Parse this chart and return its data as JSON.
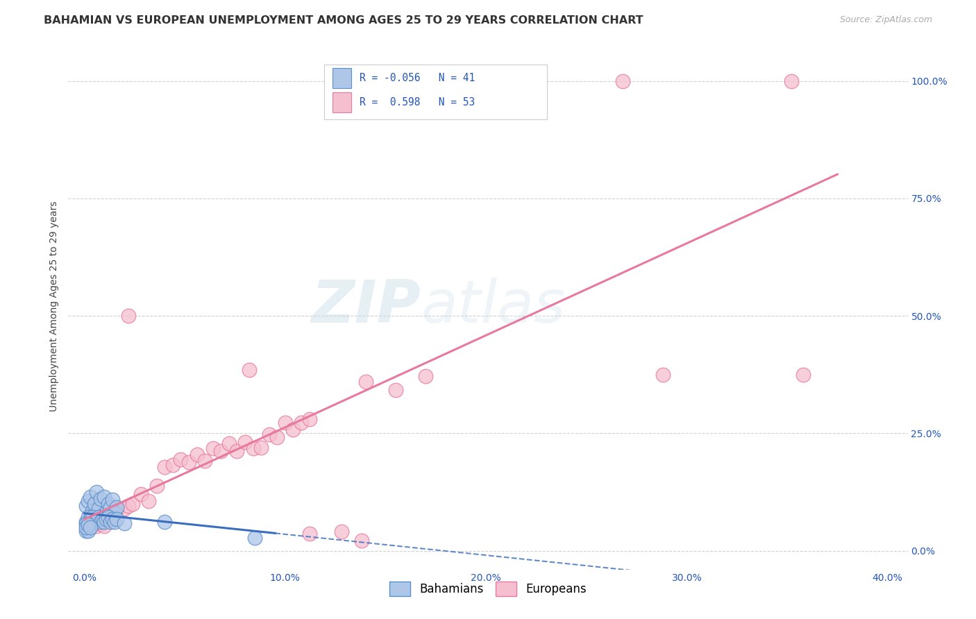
{
  "title": "BAHAMIAN VS EUROPEAN UNEMPLOYMENT AMONG AGES 25 TO 29 YEARS CORRELATION CHART",
  "source": "Source: ZipAtlas.com",
  "ylabel": "Unemployment Among Ages 25 to 29 years",
  "watermark_line1": "ZIP",
  "watermark_line2": "atlas",
  "legend_bahamian_R": "-0.056",
  "legend_bahamian_N": "41",
  "legend_european_R": "0.598",
  "legend_european_N": "53",
  "bahamian_color": "#aec6e8",
  "bahamian_edge_color": "#5b8fc9",
  "european_color": "#f5bfd0",
  "european_edge_color": "#e8799e",
  "bahamian_line_color": "#3b6dbf",
  "european_line_color": "#e8799e",
  "bahamian_points": [
    [
      0.001,
      0.095
    ],
    [
      0.002,
      0.105
    ],
    [
      0.003,
      0.115
    ],
    [
      0.004,
      0.085
    ],
    [
      0.005,
      0.1
    ],
    [
      0.006,
      0.125
    ],
    [
      0.007,
      0.09
    ],
    [
      0.008,
      0.11
    ],
    [
      0.009,
      0.075
    ],
    [
      0.01,
      0.115
    ],
    [
      0.011,
      0.082
    ],
    [
      0.012,
      0.1
    ],
    [
      0.013,
      0.092
    ],
    [
      0.014,
      0.108
    ],
    [
      0.015,
      0.08
    ],
    [
      0.016,
      0.092
    ],
    [
      0.001,
      0.062
    ],
    [
      0.002,
      0.072
    ],
    [
      0.003,
      0.067
    ],
    [
      0.004,
      0.072
    ],
    [
      0.005,
      0.062
    ],
    [
      0.006,
      0.067
    ],
    [
      0.007,
      0.072
    ],
    [
      0.008,
      0.062
    ],
    [
      0.009,
      0.067
    ],
    [
      0.01,
      0.062
    ],
    [
      0.011,
      0.067
    ],
    [
      0.012,
      0.072
    ],
    [
      0.013,
      0.062
    ],
    [
      0.014,
      0.067
    ],
    [
      0.015,
      0.062
    ],
    [
      0.016,
      0.067
    ],
    [
      0.001,
      0.042
    ],
    [
      0.002,
      0.042
    ],
    [
      0.001,
      0.057
    ],
    [
      0.001,
      0.05
    ],
    [
      0.002,
      0.055
    ],
    [
      0.003,
      0.05
    ],
    [
      0.085,
      0.028
    ],
    [
      0.04,
      0.062
    ],
    [
      0.02,
      0.058
    ]
  ],
  "european_points": [
    [
      0.002,
      0.058
    ],
    [
      0.003,
      0.052
    ],
    [
      0.004,
      0.068
    ],
    [
      0.005,
      0.06
    ],
    [
      0.006,
      0.052
    ],
    [
      0.007,
      0.068
    ],
    [
      0.008,
      0.057
    ],
    [
      0.009,
      0.062
    ],
    [
      0.01,
      0.052
    ],
    [
      0.011,
      0.067
    ],
    [
      0.012,
      0.075
    ],
    [
      0.013,
      0.08
    ],
    [
      0.014,
      0.07
    ],
    [
      0.015,
      0.075
    ],
    [
      0.016,
      0.088
    ],
    [
      0.02,
      0.09
    ],
    [
      0.022,
      0.095
    ],
    [
      0.024,
      0.1
    ],
    [
      0.028,
      0.12
    ],
    [
      0.032,
      0.105
    ],
    [
      0.036,
      0.138
    ],
    [
      0.04,
      0.178
    ],
    [
      0.044,
      0.182
    ],
    [
      0.048,
      0.195
    ],
    [
      0.052,
      0.188
    ],
    [
      0.056,
      0.205
    ],
    [
      0.06,
      0.192
    ],
    [
      0.064,
      0.218
    ],
    [
      0.068,
      0.212
    ],
    [
      0.072,
      0.228
    ],
    [
      0.076,
      0.212
    ],
    [
      0.08,
      0.232
    ],
    [
      0.084,
      0.218
    ],
    [
      0.088,
      0.22
    ],
    [
      0.092,
      0.248
    ],
    [
      0.096,
      0.242
    ],
    [
      0.1,
      0.272
    ],
    [
      0.104,
      0.258
    ],
    [
      0.108,
      0.272
    ],
    [
      0.112,
      0.28
    ],
    [
      0.14,
      0.36
    ],
    [
      0.155,
      0.342
    ],
    [
      0.17,
      0.372
    ],
    [
      0.208,
      1.0
    ],
    [
      0.268,
      1.0
    ],
    [
      0.352,
      1.0
    ],
    [
      0.022,
      0.5
    ],
    [
      0.082,
      0.385
    ],
    [
      0.112,
      0.036
    ],
    [
      0.128,
      0.04
    ],
    [
      0.288,
      0.375
    ],
    [
      0.358,
      0.375
    ],
    [
      0.138,
      0.022
    ]
  ],
  "xlim": [
    -0.008,
    0.41
  ],
  "ylim": [
    -0.04,
    1.08
  ],
  "xtick_positions": [
    0.0,
    0.1,
    0.2,
    0.3,
    0.4
  ],
  "ytick_positions": [
    0.0,
    0.25,
    0.5,
    0.75,
    1.0
  ],
  "grid_color": "#d0d0d0",
  "background_color": "#ffffff",
  "title_fontsize": 11.5,
  "axis_label_fontsize": 10,
  "tick_label_fontsize": 10,
  "source_fontsize": 9
}
